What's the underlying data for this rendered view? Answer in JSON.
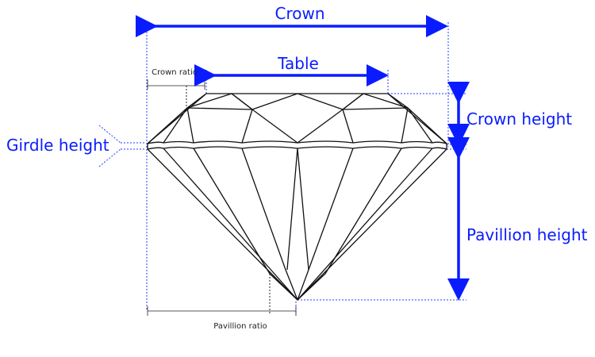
{
  "labels": {
    "crown": "Crown",
    "table": "Table",
    "crown_ratio": "Crown ratio",
    "crown_height": "Crown height",
    "girdle_height": "Girdle height",
    "pavillion_height": "Pavillion height",
    "pavillion_ratio": "Pavillion ratio"
  },
  "colors": {
    "accent": "#0a1cff",
    "diamond_outline": "#111111",
    "background": "#ffffff"
  }
}
